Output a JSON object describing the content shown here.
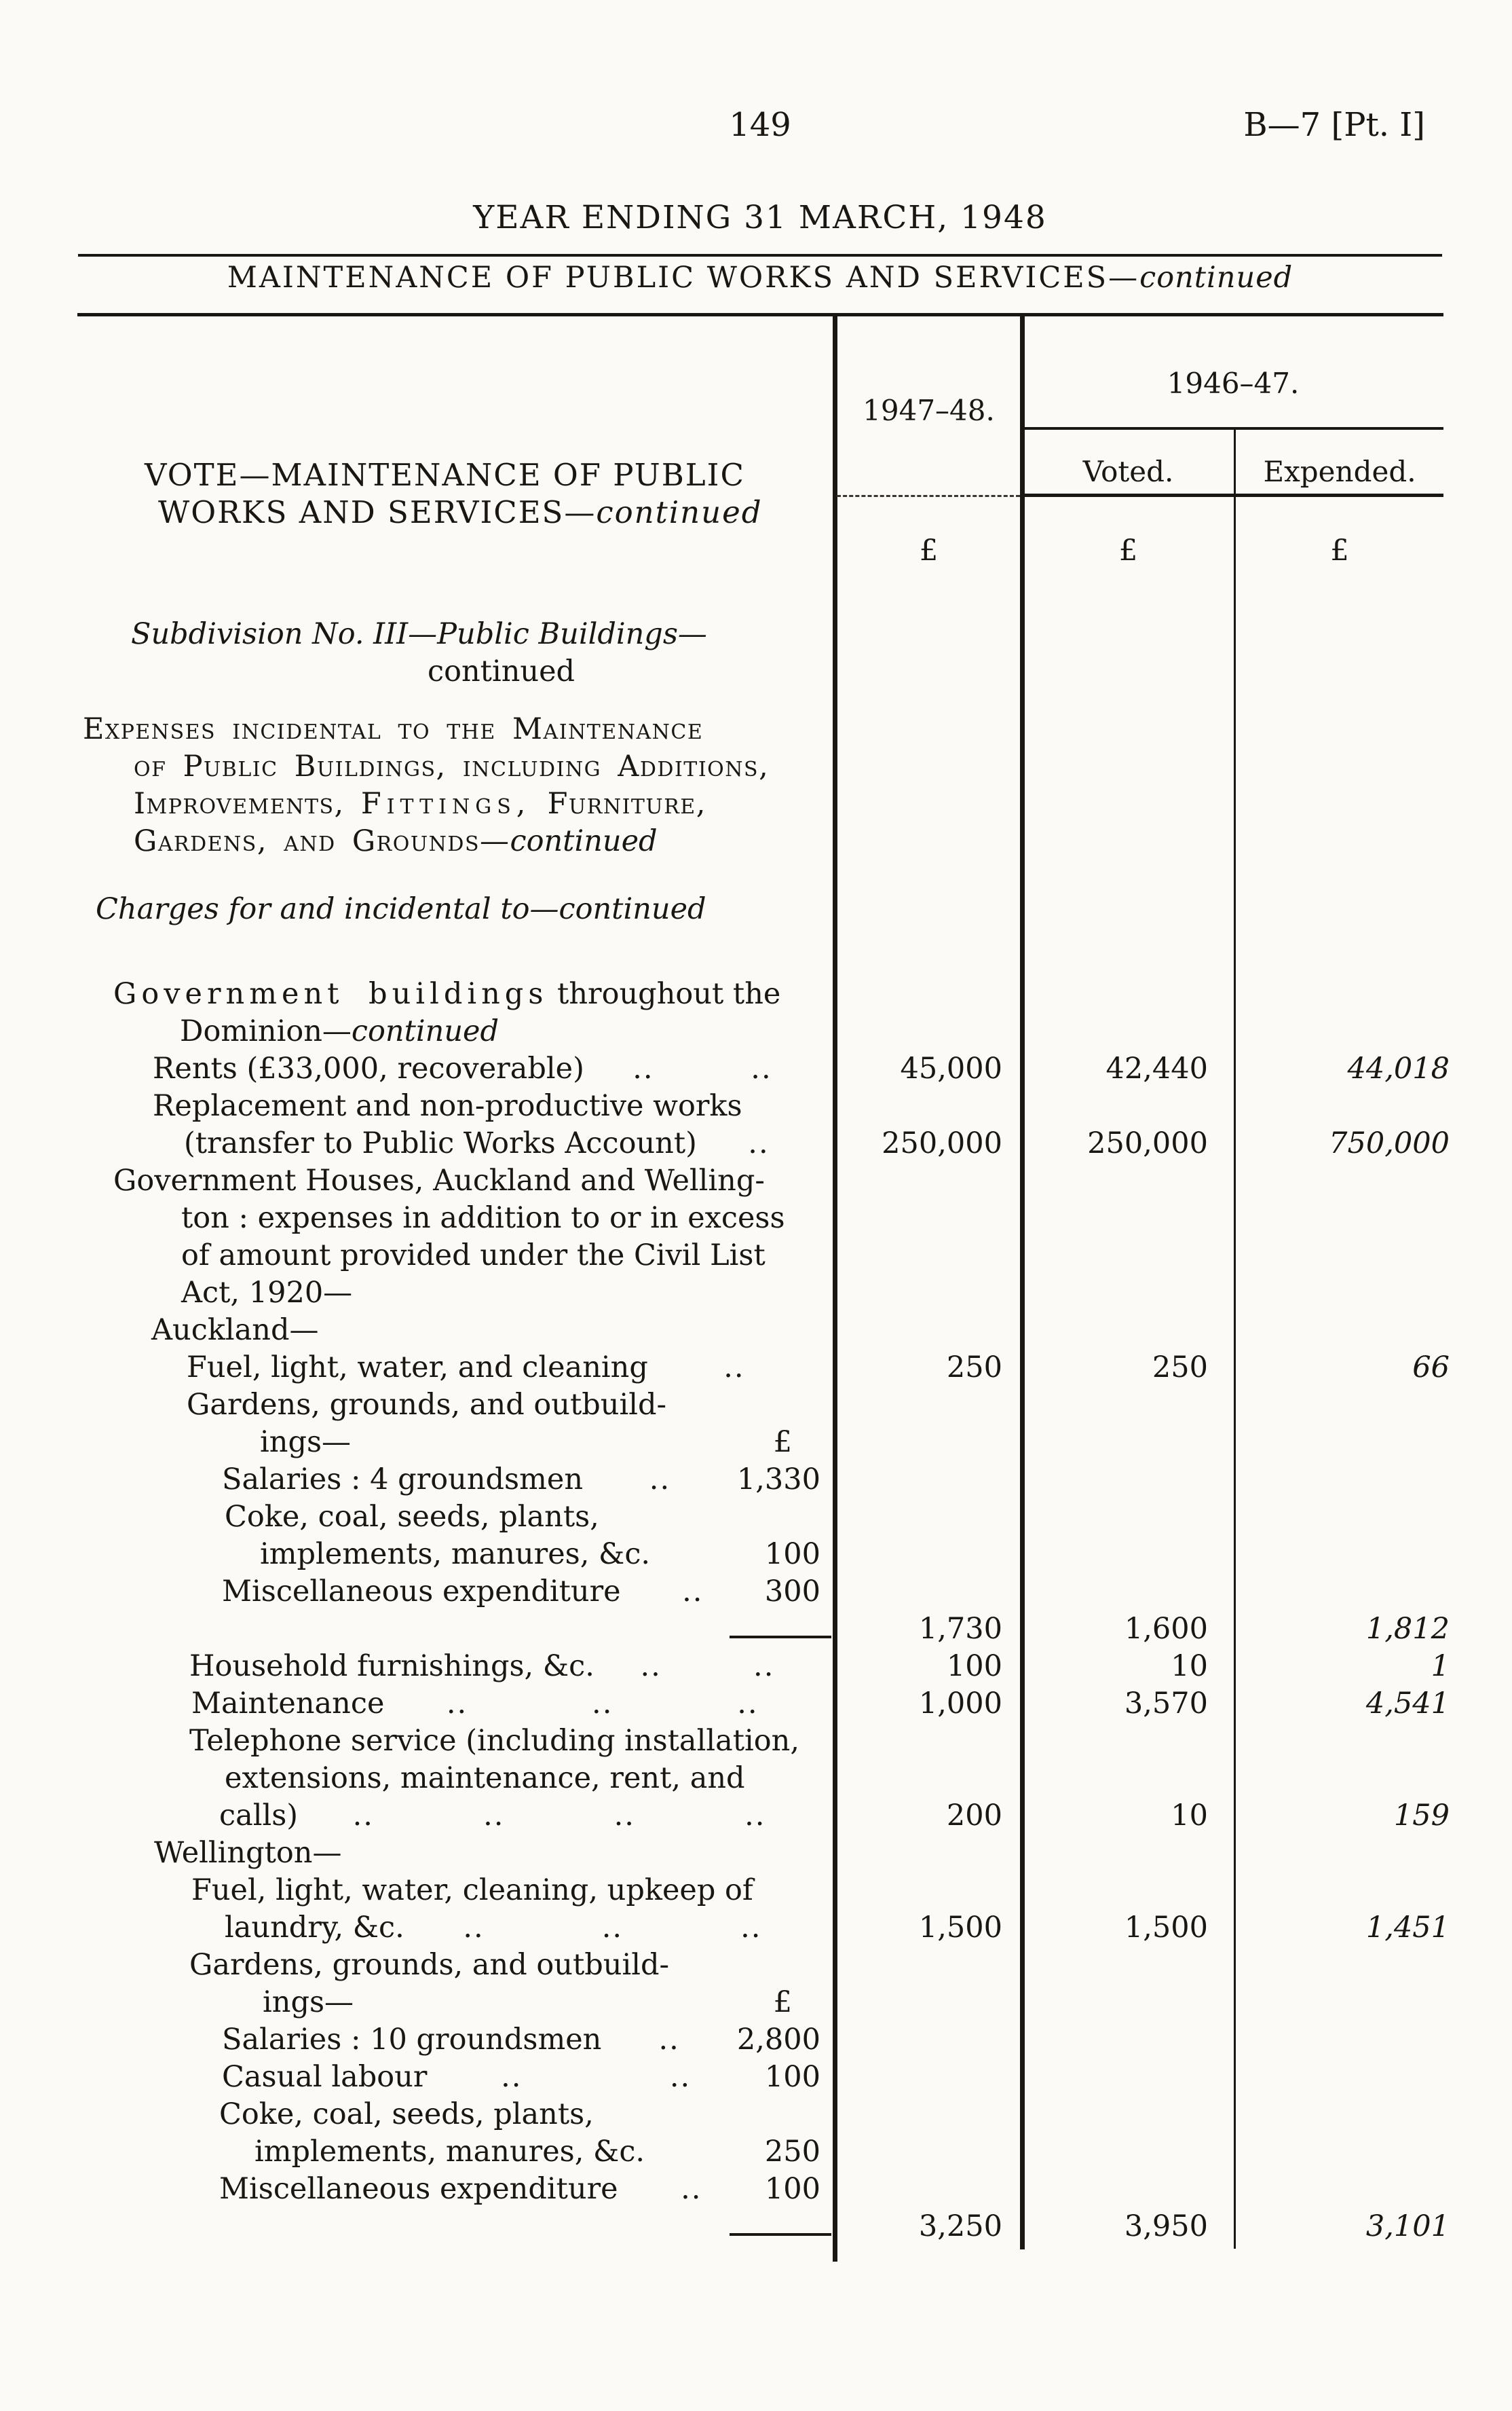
{
  "page": {
    "number": "149",
    "doc_ref": "B—7 [Pt. I]",
    "heading": "YEAR ENDING 31 MARCH, 1948",
    "subheading": "MAINTENANCE OF PUBLIC WORKS AND SERVICES—",
    "subheading_continued": "continued"
  },
  "table": {
    "col_1947_48": "1947–48.",
    "col_1946_47": "1946–47.",
    "col_voted": "Voted.",
    "col_expended": "Expended.",
    "currency": "£"
  },
  "rows": [
    {
      "ind": 98,
      "cls": "vote",
      "seg": [
        {
          "t": "VOTE—MAINTENANCE OF PUBLIC"
        }
      ]
    },
    {
      "ind": 118,
      "cls": "vote",
      "seg": [
        {
          "t": "WORKS AND SERVICES—"
        },
        {
          "t": "continued",
          "st": "i"
        }
      ]
    },
    {
      "ind": 78,
      "gap": 125,
      "seg": [
        {
          "t": "Subdivision No. III—Public Buildings—",
          "st": "i"
        }
      ]
    },
    {
      "ind": 515,
      "seg": [
        {
          "t": "continued"
        }
      ]
    },
    {
      "ind": 7,
      "gap": 30,
      "seg": [
        {
          "t": "Expenses incidental to the Maintenance",
          "st": "sc"
        }
      ]
    },
    {
      "ind": 82,
      "seg": [
        {
          "t": "of Public Buildings, including Additions,",
          "st": "sc"
        }
      ]
    },
    {
      "ind": 82,
      "seg": [
        {
          "t": "Improvements, ",
          "st": "sc"
        },
        {
          "t": "Fittings,",
          "st": "scls"
        },
        {
          "t": " Furniture,",
          "st": "sc"
        }
      ]
    },
    {
      "ind": 82,
      "seg": [
        {
          "t": "Gardens, and Grounds—",
          "st": "sc"
        },
        {
          "t": "continued",
          "st": "i"
        }
      ]
    },
    {
      "ind": 26,
      "gap": 45,
      "seg": [
        {
          "t": "Charges for and incidental to—continued",
          "st": "i"
        }
      ]
    },
    {
      "ind": 52,
      "gap": 70,
      "seg": [
        {
          "t": "Government buildings",
          "st": "ls"
        },
        {
          "t": " throughout the"
        }
      ]
    },
    {
      "ind": 150,
      "seg": [
        {
          "t": "Dominion—"
        },
        {
          "t": "continued",
          "st": "i"
        }
      ]
    },
    {
      "ind": 110,
      "seg": [
        {
          "t": "Rents (£33,000, recoverable)"
        }
      ],
      "dots": 2,
      "a": "45,000",
      "v": "42,440",
      "e": "44,018"
    },
    {
      "ind": 110,
      "seg": [
        {
          "t": "Replacement and non-productive works"
        }
      ]
    },
    {
      "ind": 156,
      "seg": [
        {
          "t": "(transfer to Public Works Account)"
        }
      ],
      "dots": 1,
      "a": "250,000",
      "v": "250,000",
      "e": "750,000"
    },
    {
      "ind": 52,
      "seg": [
        {
          "t": "Government Houses, Auckland and Welling-"
        }
      ]
    },
    {
      "ind": 152,
      "seg": [
        {
          "t": "ton : expenses in addition to or in excess"
        }
      ]
    },
    {
      "ind": 152,
      "seg": [
        {
          "t": "of amount provided under the Civil List"
        }
      ]
    },
    {
      "ind": 152,
      "seg": [
        {
          "t": "Act, 1920—"
        }
      ]
    },
    {
      "ind": 108,
      "seg": [
        {
          "t": "Auckland—"
        }
      ]
    },
    {
      "ind": 160,
      "seg": [
        {
          "t": "Fuel, light, water, and cleaning"
        }
      ],
      "dots": 1,
      "a": "250",
      "v": "250",
      "e": "66"
    },
    {
      "ind": 160,
      "seg": [
        {
          "t": "Gardens, grounds, and outbuild-"
        }
      ]
    },
    {
      "ind": 268,
      "seg": [
        {
          "t": "ings—"
        }
      ],
      "amt": "£"
    },
    {
      "ind": 212,
      "seg": [
        {
          "t": "Salaries : 4 groundsmen"
        }
      ],
      "dots": 1,
      "amt": "1,330"
    },
    {
      "ind": 216,
      "seg": [
        {
          "t": "Coke, coal, seeds, plants,"
        }
      ]
    },
    {
      "ind": 268,
      "seg": [
        {
          "t": "implements, manures, &c."
        }
      ],
      "amt": "100"
    },
    {
      "ind": 212,
      "seg": [
        {
          "t": "Miscellaneous expenditure"
        }
      ],
      "dots": 1,
      "amt": "300"
    },
    {
      "dash": true,
      "a": "1,730",
      "v": "1,600",
      "e": "1,812"
    },
    {
      "ind": 164,
      "seg": [
        {
          "t": "Household furnishings, &c."
        }
      ],
      "dots": 2,
      "a": "100",
      "v": "10",
      "e": "1"
    },
    {
      "ind": 167,
      "seg": [
        {
          "t": "Maintenance"
        }
      ],
      "dots": 3,
      "a": "1,000",
      "v": "3,570",
      "e": "4,541"
    },
    {
      "ind": 164,
      "seg": [
        {
          "t": "Telephone service (including installation,"
        }
      ]
    },
    {
      "ind": 216,
      "seg": [
        {
          "t": "extensions, maintenance, rent, and"
        }
      ]
    },
    {
      "ind": 208,
      "seg": [
        {
          "t": "calls)"
        }
      ],
      "dots": 4,
      "a": "200",
      "v": "10",
      "e": "159"
    },
    {
      "ind": 112,
      "seg": [
        {
          "t": "Wellington—"
        }
      ]
    },
    {
      "ind": 167,
      "seg": [
        {
          "t": "Fuel, light, water, cleaning, upkeep of"
        }
      ]
    },
    {
      "ind": 216,
      "seg": [
        {
          "t": "laundry, &c."
        }
      ],
      "dots": 3,
      "a": "1,500",
      "v": "1,500",
      "e": "1,451"
    },
    {
      "ind": 164,
      "seg": [
        {
          "t": "Gardens, grounds, and outbuild-"
        }
      ]
    },
    {
      "ind": 272,
      "seg": [
        {
          "t": "ings—"
        }
      ],
      "amt": "£"
    },
    {
      "ind": 212,
      "seg": [
        {
          "t": "Salaries : 10 groundsmen"
        }
      ],
      "dots": 1,
      "amt": "2,800"
    },
    {
      "ind": 212,
      "seg": [
        {
          "t": "Casual labour"
        }
      ],
      "dots": 2,
      "amt": "100"
    },
    {
      "ind": 208,
      "seg": [
        {
          "t": "Coke, coal, seeds, plants,"
        }
      ]
    },
    {
      "ind": 260,
      "seg": [
        {
          "t": "implements, manures, &c."
        }
      ],
      "amt": "250"
    },
    {
      "ind": 208,
      "seg": [
        {
          "t": "Miscellaneous expenditure"
        }
      ],
      "dots": 1,
      "amt": "100"
    },
    {
      "dash": true,
      "a": "3,250",
      "v": "3,950",
      "e": "3,101"
    }
  ]
}
